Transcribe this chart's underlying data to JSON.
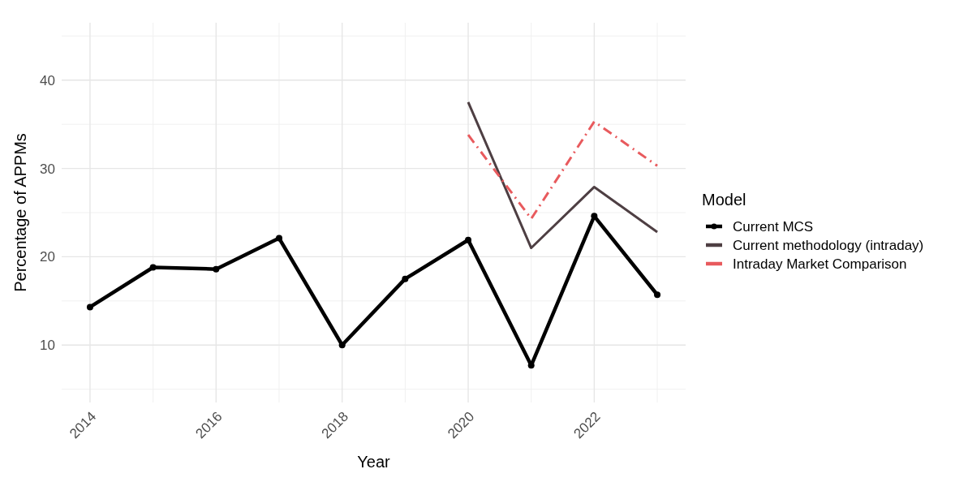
{
  "chart_data": {
    "type": "line",
    "xlabel": "Year",
    "ylabel": "Percentage of APPMs",
    "legend_title": "Model",
    "legend": "right",
    "grid": true,
    "xlim": [
      2013.55,
      2023.45
    ],
    "xticks": [
      2014,
      2016,
      2018,
      2020,
      2022
    ],
    "ylim": [
      3.5,
      46.5
    ],
    "yticks": [
      10,
      20,
      30,
      40
    ],
    "series": [
      {
        "name": "Current MCS",
        "color": "#000000",
        "marker": "circle",
        "line_style": "solid",
        "x": [
          2014,
          2015,
          2016,
          2017,
          2018,
          2019,
          2020,
          2021,
          2022,
          2023
        ],
        "values": [
          14.3,
          18.8,
          18.6,
          22.1,
          10,
          17.5,
          21.9,
          7.7,
          24.6,
          15.7
        ]
      },
      {
        "name": "Current methodology (intraday)",
        "color": "#4e3f43",
        "marker": "none",
        "line_style": "solid",
        "x": [
          2020,
          2021,
          2022,
          2023
        ],
        "values": [
          37.5,
          21,
          27.9,
          22.8
        ]
      },
      {
        "name": "Intraday Market Comparison",
        "color": "#e85a5d",
        "marker": "none",
        "line_style": "dashdot",
        "x": [
          2020,
          2021,
          2022,
          2023
        ],
        "values": [
          33.8,
          24.3,
          35.3,
          30.3
        ]
      }
    ]
  }
}
